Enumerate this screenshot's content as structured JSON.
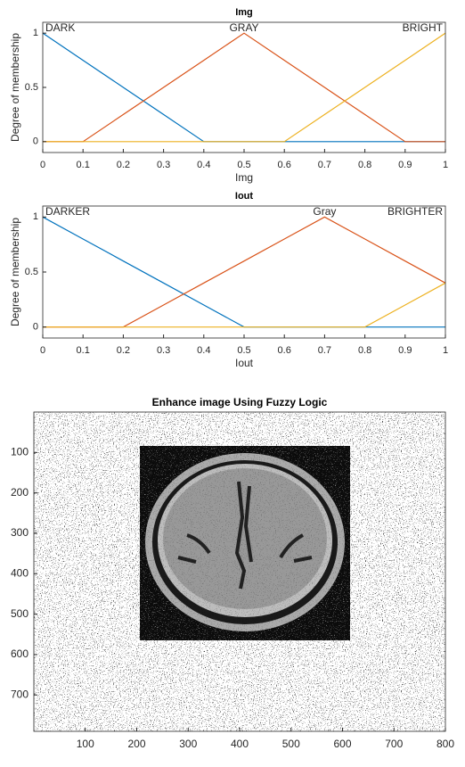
{
  "chart_data": [
    {
      "type": "line",
      "title": "Img",
      "x_label": "Img",
      "y_label": "Degree of membership",
      "x": [
        0,
        0.1,
        0.2,
        0.3,
        0.4,
        0.5,
        0.6,
        0.7,
        0.8,
        0.9,
        1
      ],
      "series": [
        {
          "name": "DARK",
          "color": "#0072bd",
          "values": [
            1,
            0.75,
            0.5,
            0.25,
            0,
            0,
            0,
            0,
            0,
            0,
            0
          ]
        },
        {
          "name": "GRAY",
          "color": "#d95319",
          "values": [
            0,
            0,
            0.25,
            0.5,
            0.75,
            1,
            0.75,
            0.5,
            0.25,
            0,
            0
          ]
        },
        {
          "name": "BRIGHT",
          "color": "#edb120",
          "values": [
            0,
            0,
            0,
            0,
            0,
            0,
            0,
            0.25,
            0.5,
            0.75,
            1
          ]
        }
      ],
      "xlim": [
        0,
        1
      ],
      "xticks": [
        0,
        0.1,
        0.2,
        0.3,
        0.4,
        0.5,
        0.6,
        0.7,
        0.8,
        0.9,
        1
      ],
      "ylim": [
        -0.1,
        1.1
      ],
      "yticks": [
        0,
        0.5,
        1
      ]
    },
    {
      "type": "line",
      "title": "Iout",
      "x_label": "Iout",
      "y_label": "Degree of membership",
      "x": [
        0,
        0.1,
        0.2,
        0.3,
        0.4,
        0.5,
        0.6,
        0.7,
        0.8,
        0.9,
        1
      ],
      "series": [
        {
          "name": "DARKER",
          "color": "#0072bd",
          "values": [
            1,
            0.8,
            0.6,
            0.4,
            0.2,
            0,
            0,
            0,
            0,
            0,
            0
          ]
        },
        {
          "name": "Gray",
          "color": "#d95319",
          "values": [
            0,
            0,
            0,
            0.2,
            0.4,
            0.6,
            0.8,
            1,
            0.8,
            0.6,
            0.4
          ]
        },
        {
          "name": "BRIGHTER",
          "color": "#edb120",
          "values": [
            0,
            0,
            0,
            0,
            0,
            0,
            0,
            0,
            0,
            0.2,
            0.4
          ]
        }
      ],
      "xlim": [
        0,
        1
      ],
      "xticks": [
        0,
        0.1,
        0.2,
        0.3,
        0.4,
        0.5,
        0.6,
        0.7,
        0.8,
        0.9,
        1
      ],
      "ylim": [
        -0.1,
        1.1
      ],
      "yticks": [
        0,
        0.5,
        1
      ]
    },
    {
      "type": "image",
      "title": "Enhance image Using Fuzzy Logic",
      "xlim": [
        0,
        800
      ],
      "xticks": [
        100,
        200,
        300,
        400,
        500,
        600,
        700,
        800
      ],
      "ylim": [
        0,
        790
      ],
      "yticks": [
        100,
        200,
        300,
        400,
        500,
        600,
        700
      ]
    }
  ]
}
